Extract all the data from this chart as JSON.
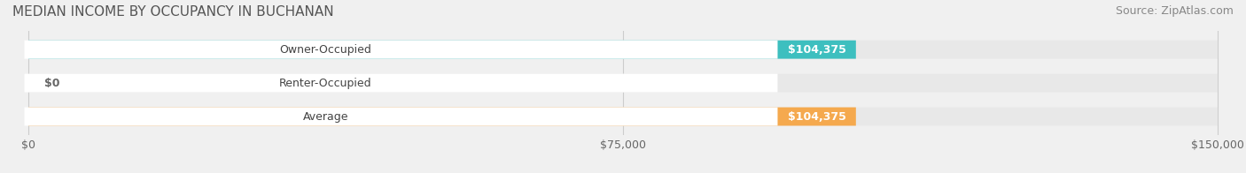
{
  "title": "MEDIAN INCOME BY OCCUPANCY IN BUCHANAN",
  "source": "Source: ZipAtlas.com",
  "categories": [
    "Owner-Occupied",
    "Renter-Occupied",
    "Average"
  ],
  "values": [
    104375,
    0,
    104375
  ],
  "bar_colors": [
    "#3dbfbf",
    "#c9a8d4",
    "#f5a94e"
  ],
  "bar_labels": [
    "$104,375",
    "$0",
    "$104,375"
  ],
  "xlim": [
    0,
    150000
  ],
  "xticks": [
    0,
    75000,
    150000
  ],
  "xtick_labels": [
    "$0",
    "$75,000",
    "$150,000"
  ],
  "background_color": "#f0f0f0",
  "bar_background_color": "#e8e8e8",
  "title_fontsize": 11,
  "source_fontsize": 9,
  "label_fontsize": 9,
  "tick_fontsize": 9
}
